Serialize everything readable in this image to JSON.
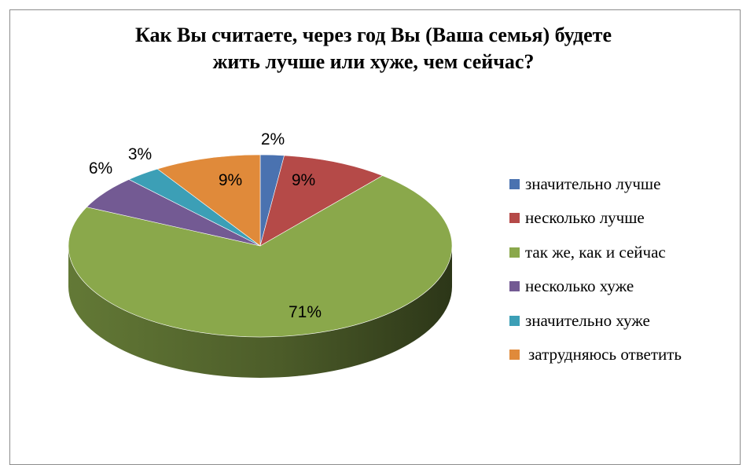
{
  "chart_data": {
    "type": "pie",
    "title_lines": [
      "Как Вы считаете, через год Вы (Ваша семья) будете",
      "жить лучше или хуже, чем сейчас?"
    ],
    "categories": [
      "значительно лучше",
      "несколько лучше",
      "так же, как и сейчас",
      "несколько хуже",
      "значительно хуже",
      "затрудняюсь ответить"
    ],
    "values": [
      2,
      9,
      71,
      6,
      3,
      9
    ],
    "data_labels": [
      "2%",
      "9%",
      "71%",
      "6%",
      "3%",
      "9%"
    ],
    "colors": [
      "#4a72b0",
      "#b54a48",
      "#8aa84b",
      "#735a93",
      "#3c9fb6",
      "#e08a3a"
    ],
    "legend_position": "right",
    "style": "3d"
  }
}
